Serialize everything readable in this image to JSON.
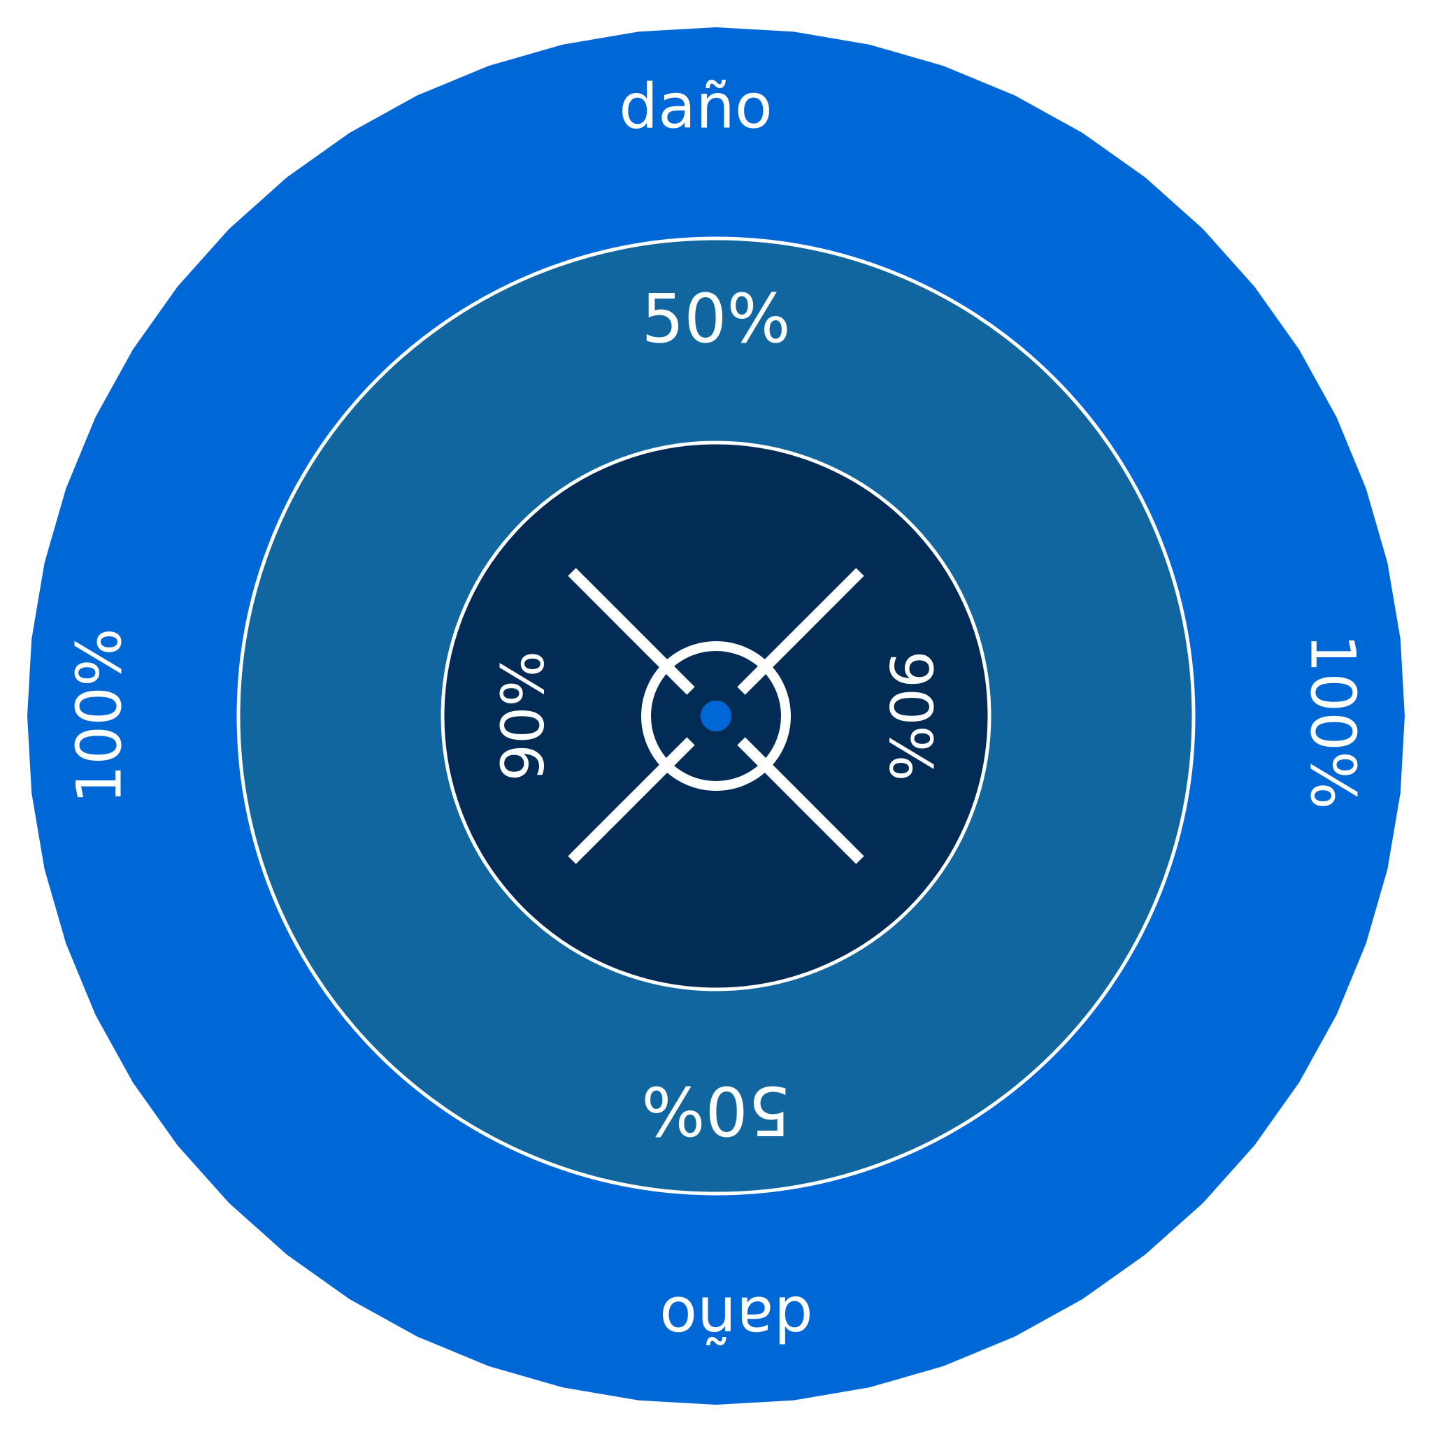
{
  "colors": {
    "background": "#ffffff",
    "outer_ring": "#0068d6",
    "middle_ring": "#11669f",
    "inner_disc": "#022b56",
    "center_dot": "#0068d6",
    "line": "#ffffff"
  },
  "icons": {
    "center": "crosshair-icon"
  },
  "outer_ring": {
    "top_label": "daño",
    "bottom_label": "daño",
    "left_label": "100%",
    "right_label": "100%"
  },
  "middle_ring": {
    "top_label": "50%",
    "bottom_label": "50%"
  },
  "inner_disc": {
    "left_label": "90%",
    "right_label": "90%"
  }
}
